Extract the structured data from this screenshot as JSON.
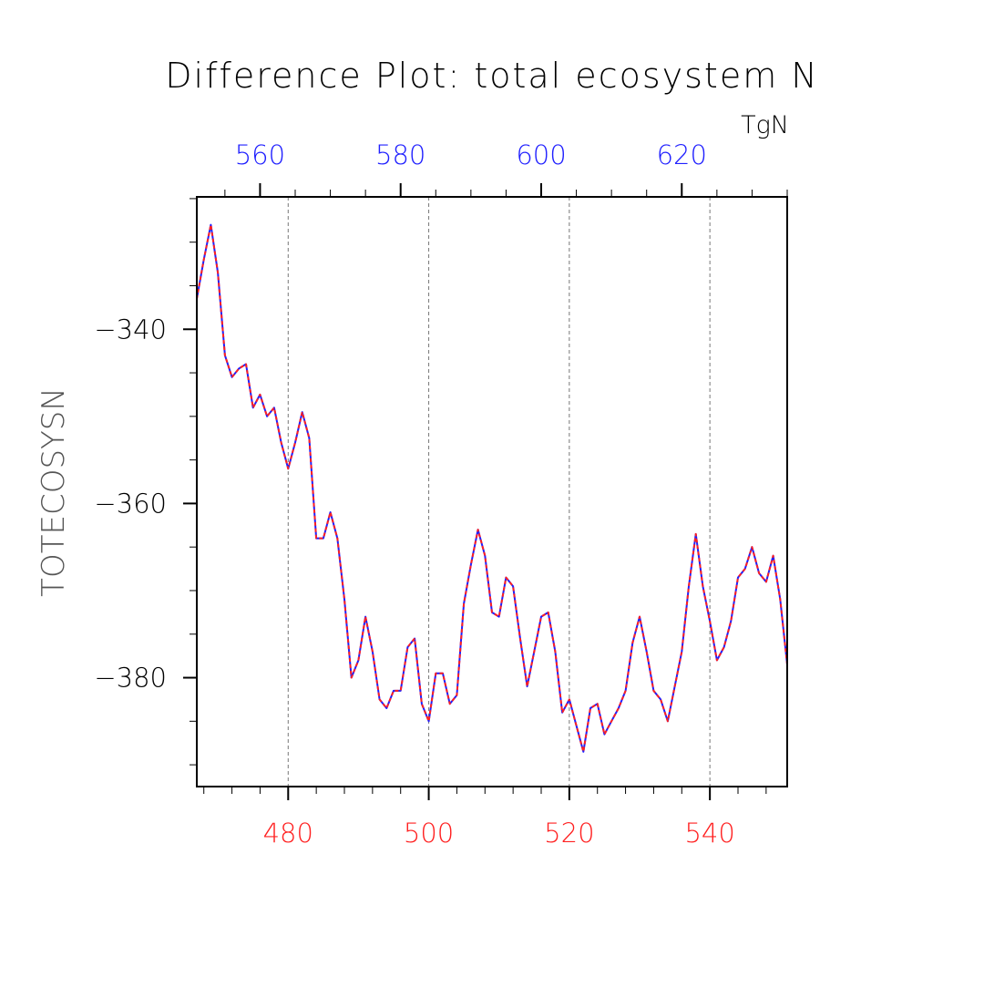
{
  "chart_data": {
    "type": "line",
    "title": "Difference Plot: total ecosystem N",
    "units": "TgN",
    "ylabel": "TOTECOSYSN",
    "xlabel": "",
    "x_bottom": {
      "range": [
        467,
        551
      ],
      "ticks": [
        480,
        500,
        520,
        540
      ],
      "tick_labels": [
        "480",
        "500",
        "520",
        "540"
      ],
      "color": "#ff2020"
    },
    "x_top": {
      "range": [
        551,
        635
      ],
      "ticks": [
        560,
        580,
        600,
        620
      ],
      "tick_labels": [
        "560",
        "580",
        "600",
        "620"
      ],
      "color": "#2020ff"
    },
    "ylim": [
      -392.5,
      -324.8
    ],
    "yticks": [
      -340,
      -360,
      -380
    ],
    "ytick_labels": [
      "−340",
      "−360",
      "−380"
    ],
    "grid": "vertical-dashed",
    "series": [
      {
        "color": "#2020ff",
        "style": "solid",
        "x": [
          467,
          468,
          469,
          470,
          471,
          472,
          473,
          474,
          475,
          476,
          477,
          478,
          479,
          480,
          481,
          482,
          483,
          484,
          485,
          486,
          487,
          488,
          489,
          490,
          491,
          492,
          493,
          494,
          495,
          496,
          497,
          498,
          499,
          500,
          501,
          502,
          503,
          504,
          505,
          506,
          507,
          508,
          509,
          510,
          511,
          512,
          513,
          514,
          515,
          516,
          517,
          518,
          519,
          520,
          521,
          522,
          523,
          524,
          525,
          526,
          527,
          528,
          529,
          530,
          531,
          532,
          533,
          534,
          535,
          536,
          537,
          538,
          539,
          540,
          541,
          542,
          543,
          544,
          545,
          546,
          547,
          548,
          549,
          550,
          551
        ],
        "values": [
          -336.5,
          -332.0,
          -328.0,
          -333.5,
          -343.0,
          -345.5,
          -344.5,
          -344.0,
          -349.0,
          -347.5,
          -350.0,
          -349.0,
          -353.0,
          -356.0,
          -353.0,
          -349.5,
          -352.5,
          -364.0,
          -364.0,
          -361.0,
          -364.0,
          -371.0,
          -380.0,
          -378.0,
          -373.0,
          -377.0,
          -382.5,
          -383.5,
          -381.5,
          -381.5,
          -376.5,
          -375.5,
          -383.0,
          -385.0,
          -379.5,
          -379.5,
          -383.0,
          -382.0,
          -371.5,
          -367.0,
          -363.0,
          -366.0,
          -372.5,
          -373.0,
          -368.5,
          -369.5,
          -375.5,
          -381.0,
          -377.0,
          -373.0,
          -372.5,
          -377.0,
          -384.0,
          -382.5,
          -385.5,
          -388.5,
          -383.5,
          -383.0,
          -386.5,
          -385.0,
          -383.5,
          -381.5,
          -376.0,
          -373.0,
          -377.0,
          -381.5,
          -382.5,
          -385.0,
          -381.0,
          -377.0,
          -369.5,
          -363.5,
          -369.5,
          -373.5,
          -378.0,
          -376.5,
          -373.5,
          -368.5,
          -367.5,
          -365.0,
          -368.0,
          -369.0,
          -366.0,
          -371.0,
          -378.5
        ]
      },
      {
        "color": "#ff2020",
        "style": "dashed",
        "x": [
          467,
          468,
          469,
          470,
          471,
          472,
          473,
          474,
          475,
          476,
          477,
          478,
          479,
          480,
          481,
          482,
          483,
          484,
          485,
          486,
          487,
          488,
          489,
          490,
          491,
          492,
          493,
          494,
          495,
          496,
          497,
          498,
          499,
          500,
          501,
          502,
          503,
          504,
          505,
          506,
          507,
          508,
          509,
          510,
          511,
          512,
          513,
          514,
          515,
          516,
          517,
          518,
          519,
          520,
          521,
          522,
          523,
          524,
          525,
          526,
          527,
          528,
          529,
          530,
          531,
          532,
          533,
          534,
          535,
          536,
          537,
          538,
          539,
          540,
          541,
          542,
          543,
          544,
          545,
          546,
          547,
          548,
          549,
          550,
          551
        ],
        "values": [
          -336.5,
          -332.0,
          -328.0,
          -333.5,
          -343.0,
          -345.5,
          -344.5,
          -344.0,
          -349.0,
          -347.5,
          -350.0,
          -349.0,
          -353.0,
          -356.0,
          -353.0,
          -349.5,
          -352.5,
          -364.0,
          -364.0,
          -361.0,
          -364.0,
          -371.0,
          -380.0,
          -378.0,
          -373.0,
          -377.0,
          -382.5,
          -383.5,
          -381.5,
          -381.5,
          -376.5,
          -375.5,
          -383.0,
          -385.0,
          -379.5,
          -379.5,
          -383.0,
          -382.0,
          -371.5,
          -367.0,
          -363.0,
          -366.0,
          -372.5,
          -373.0,
          -368.5,
          -369.5,
          -375.5,
          -381.0,
          -377.0,
          -373.0,
          -372.5,
          -377.0,
          -384.0,
          -382.5,
          -385.5,
          -388.5,
          -383.5,
          -383.0,
          -386.5,
          -385.0,
          -383.5,
          -381.5,
          -376.0,
          -373.0,
          -377.0,
          -381.5,
          -382.5,
          -385.0,
          -381.0,
          -377.0,
          -369.5,
          -363.5,
          -369.5,
          -373.5,
          -378.0,
          -376.5,
          -373.5,
          -368.5,
          -367.5,
          -365.0,
          -368.0,
          -369.0,
          -366.0,
          -371.0,
          -378.5
        ]
      }
    ]
  }
}
